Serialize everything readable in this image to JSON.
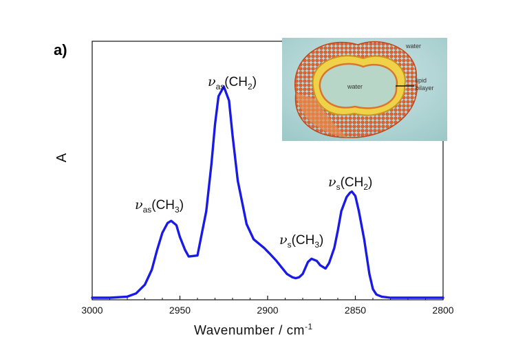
{
  "panel_label": "a)",
  "inset": {
    "water_top": "water",
    "water_inner": "water",
    "lipid_line1": "lipid",
    "lipid_line2": "bilayer"
  },
  "annotations": [
    {
      "nu": "ν",
      "sub": "as",
      "group": "(CH",
      "num": "3",
      "close": ")"
    },
    {
      "nu": "ν",
      "sub": "as",
      "group": "(CH",
      "num": "2",
      "close": ")"
    },
    {
      "nu": "ν",
      "sub": "s",
      "group": "(CH",
      "num": "3",
      "close": ")"
    },
    {
      "nu": "ν",
      "sub": "s",
      "group": "(CH",
      "num": "2",
      "close": ")"
    }
  ],
  "chart_data": {
    "type": "line",
    "title": "",
    "xlabel": "Wavenumber  / cm",
    "xlabel_sup": "-1",
    "ylabel": "A",
    "xlim": [
      3000,
      2800
    ],
    "x_reversed": true,
    "ylim": [
      0,
      1.0
    ],
    "xticks": [
      3000,
      2950,
      2900,
      2850,
      2800
    ],
    "y_ticks_shown": false,
    "grid": false,
    "series": [
      {
        "color": "#1a1ae6",
        "x": [
          3000,
          2990,
          2980,
          2975,
          2970,
          2966,
          2963,
          2960,
          2957,
          2955,
          2952,
          2950,
          2947,
          2945,
          2940,
          2935,
          2932,
          2930,
          2928,
          2925,
          2922,
          2920,
          2917,
          2912,
          2908,
          2905,
          2902,
          2899,
          2895,
          2892,
          2889,
          2886,
          2884,
          2882,
          2880,
          2877,
          2875,
          2872,
          2870,
          2867,
          2865,
          2862,
          2860,
          2858,
          2855,
          2853,
          2852,
          2850,
          2848,
          2845,
          2842,
          2840,
          2838,
          2835,
          2830,
          2820,
          2810,
          2800
        ],
        "y": [
          0.0,
          0.0,
          0.005,
          0.02,
          0.06,
          0.13,
          0.22,
          0.3,
          0.345,
          0.355,
          0.335,
          0.28,
          0.22,
          0.19,
          0.195,
          0.4,
          0.62,
          0.8,
          0.93,
          0.975,
          0.91,
          0.75,
          0.54,
          0.34,
          0.27,
          0.25,
          0.23,
          0.205,
          0.17,
          0.14,
          0.11,
          0.095,
          0.09,
          0.095,
          0.11,
          0.165,
          0.18,
          0.17,
          0.15,
          0.135,
          0.16,
          0.23,
          0.31,
          0.4,
          0.465,
          0.485,
          0.49,
          0.47,
          0.4,
          0.27,
          0.11,
          0.04,
          0.015,
          0.005,
          0.0,
          0.0,
          0.0,
          0.0
        ]
      }
    ]
  }
}
